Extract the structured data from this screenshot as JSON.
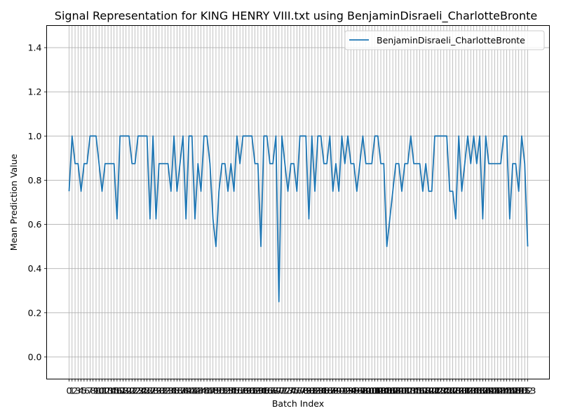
{
  "chart_data": {
    "type": "line",
    "title": "Signal Representation for KING HENRY VIII.txt using BenjaminDisraeli_CharlotteBronte",
    "xlabel": "Batch Index",
    "ylabel": "Mean Prediction Value",
    "ylim": [
      -0.1,
      1.5
    ],
    "yticks": [
      0.0,
      0.2,
      0.4,
      0.6,
      0.8,
      1.0,
      1.2,
      1.4
    ],
    "grid": true,
    "legend_position": "top-right",
    "series": [
      {
        "name": "BenjaminDisraeli_CharlotteBronte",
        "color": "#1f77b4",
        "values": [
          0.75,
          1.0,
          0.875,
          0.875,
          0.75,
          0.875,
          0.875,
          1.0,
          1.0,
          1.0,
          0.875,
          0.75,
          0.875,
          0.875,
          0.875,
          0.875,
          0.625,
          1.0,
          1.0,
          1.0,
          1.0,
          0.875,
          0.875,
          1.0,
          1.0,
          1.0,
          1.0,
          0.625,
          1.0,
          0.625,
          0.875,
          0.875,
          0.875,
          0.875,
          0.75,
          1.0,
          0.75,
          0.875,
          1.0,
          0.625,
          1.0,
          1.0,
          0.625,
          0.875,
          0.75,
          1.0,
          1.0,
          0.875,
          0.625,
          0.5,
          0.75,
          0.875,
          0.875,
          0.75,
          0.875,
          0.75,
          1.0,
          0.875,
          1.0,
          1.0,
          1.0,
          1.0,
          0.875,
          0.875,
          0.5,
          1.0,
          1.0,
          0.875,
          0.875,
          1.0,
          0.25,
          1.0,
          0.875,
          0.75,
          0.875,
          0.875,
          0.75,
          1.0,
          1.0,
          1.0,
          0.625,
          1.0,
          0.75,
          1.0,
          1.0,
          0.875,
          0.875,
          1.0,
          0.75,
          0.875,
          0.75,
          1.0,
          0.875,
          1.0,
          0.875,
          0.875,
          0.75,
          0.875,
          1.0,
          0.875,
          0.875,
          0.875,
          1.0,
          1.0,
          0.875,
          0.875,
          0.5,
          0.625,
          0.75,
          0.875,
          0.875,
          0.75,
          0.875,
          0.875,
          1.0,
          0.875,
          0.875,
          0.875,
          0.75,
          0.875,
          0.75,
          0.75,
          1.0,
          1.0,
          1.0,
          1.0,
          1.0,
          0.75,
          0.75,
          0.625,
          1.0,
          0.75,
          0.875,
          1.0,
          0.875,
          1.0,
          0.875,
          1.0,
          0.625,
          1.0,
          0.875,
          0.875,
          0.875,
          0.875,
          0.875,
          1.0,
          1.0,
          0.625,
          0.875,
          0.875,
          0.75,
          1.0,
          0.875,
          0.5
        ]
      }
    ],
    "xtick_labels": [
      "0",
      "1",
      "2",
      "3",
      "4",
      "5",
      "6",
      "7",
      "8",
      "9",
      "10",
      "11",
      "12",
      "13",
      "14",
      "15",
      "16",
      "17",
      "18",
      "19",
      "20",
      "21",
      "22",
      "23",
      "24",
      "25",
      "26",
      "27",
      "28",
      "29",
      "30",
      "31",
      "32",
      "33",
      "34",
      "35",
      "36",
      "37",
      "38",
      "39",
      "40",
      "41",
      "42",
      "43",
      "44",
      "45",
      "46",
      "47",
      "48",
      "49",
      "50",
      "51",
      "52",
      "53",
      "54",
      "55",
      "56",
      "57",
      "58",
      "59",
      "60",
      "61",
      "62",
      "63",
      "64",
      "65",
      "66",
      "67",
      "68",
      "69",
      "70",
      "71",
      "72",
      "73",
      "74",
      "75",
      "76",
      "77",
      "78",
      "79",
      "80",
      "81",
      "82",
      "83",
      "84",
      "85",
      "86",
      "87",
      "88",
      "89",
      "90",
      "91",
      "92",
      "93",
      "94",
      "95",
      "96",
      "97",
      "98",
      "99",
      "100",
      "101",
      "102",
      "103",
      "104",
      "105",
      "106",
      "107",
      "108",
      "109",
      "110",
      "111",
      "112",
      "113",
      "114",
      "115",
      "116",
      "117",
      "118",
      "119",
      "120",
      "121",
      "122",
      "123",
      "124",
      "125",
      "126",
      "127",
      "128",
      "129",
      "130",
      "131",
      "132",
      "133",
      "134",
      "135",
      "136",
      "137",
      "138",
      "139",
      "140",
      "141",
      "142",
      "143",
      "144",
      "145",
      "146",
      "147",
      "148",
      "149",
      "150",
      "151",
      "152",
      "153"
    ]
  }
}
